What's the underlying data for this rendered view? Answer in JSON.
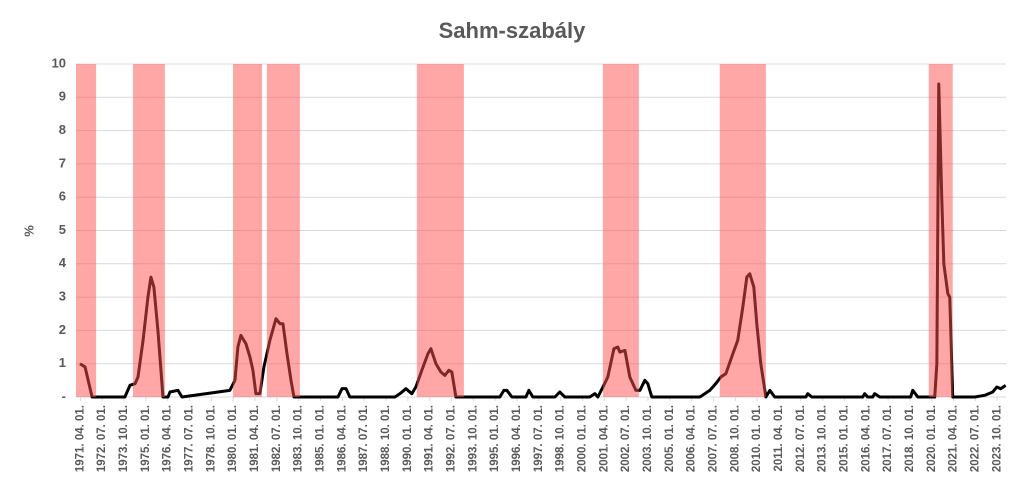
{
  "chart_data": {
    "type": "line",
    "title": "Sahm-szabály",
    "y_label": "%",
    "color": "#000000",
    "band_color": "#ff4d4d",
    "grid": true,
    "xlim": [
      1971.0,
      2024.25
    ],
    "ylim": [
      0,
      10
    ],
    "yticks": [
      {
        "value": 0,
        "label": "-"
      },
      1,
      2,
      3,
      4,
      5,
      6,
      7,
      8,
      9,
      10
    ],
    "xticks": [
      {
        "value": 1971.25,
        "label": "1971. 04. 01."
      },
      {
        "value": 1972.5,
        "label": "1972. 07. 01."
      },
      {
        "value": 1973.75,
        "label": "1973. 10. 01."
      },
      {
        "value": 1975,
        "label": "1975. 01. 01."
      },
      {
        "value": 1976.25,
        "label": "1976. 04. 01."
      },
      {
        "value": 1977.5,
        "label": "1977. 07. 01."
      },
      {
        "value": 1978.75,
        "label": "1978. 10. 01."
      },
      {
        "value": 1980,
        "label": "1980. 01. 01."
      },
      {
        "value": 1981.25,
        "label": "1981. 04. 01."
      },
      {
        "value": 1982.5,
        "label": "1982. 07. 01."
      },
      {
        "value": 1983.75,
        "label": "1983. 10. 01."
      },
      {
        "value": 1985,
        "label": "1985. 01. 01."
      },
      {
        "value": 1986.25,
        "label": "1986. 04. 01."
      },
      {
        "value": 1987.5,
        "label": "1987. 07. 01."
      },
      {
        "value": 1988.75,
        "label": "1988. 10. 01."
      },
      {
        "value": 1990,
        "label": "1990. 01. 01."
      },
      {
        "value": 1991.25,
        "label": "1991. 04. 01."
      },
      {
        "value": 1992.5,
        "label": "1992. 07. 01."
      },
      {
        "value": 1993.75,
        "label": "1993. 10. 01."
      },
      {
        "value": 1995,
        "label": "1995. 01. 01."
      },
      {
        "value": 1996.25,
        "label": "1996. 04. 01."
      },
      {
        "value": 1997.5,
        "label": "1997. 07. 01."
      },
      {
        "value": 1998.75,
        "label": "1998. 10. 01."
      },
      {
        "value": 2000,
        "label": "2000. 01. 01."
      },
      {
        "value": 2001.25,
        "label": "2001. 04. 01."
      },
      {
        "value": 2002.5,
        "label": "2002. 07. 01."
      },
      {
        "value": 2003.75,
        "label": "2003. 10. 01."
      },
      {
        "value": 2005,
        "label": "2005. 01. 01."
      },
      {
        "value": 2006.25,
        "label": "2006. 04. 01."
      },
      {
        "value": 2007.5,
        "label": "2007. 07. 01."
      },
      {
        "value": 2008.75,
        "label": "2008. 10. 01."
      },
      {
        "value": 2010,
        "label": "2010. 01. 01."
      },
      {
        "value": 2011.25,
        "label": "2011. 04. 01."
      },
      {
        "value": 2012.5,
        "label": "2012. 07. 01."
      },
      {
        "value": 2013.75,
        "label": "2013. 10. 01."
      },
      {
        "value": 2015,
        "label": "2015. 01. 01."
      },
      {
        "value": 2016.25,
        "label": "2016. 04. 01."
      },
      {
        "value": 2017.5,
        "label": "2017. 07. 01."
      },
      {
        "value": 2018.75,
        "label": "2018. 10. 01."
      },
      {
        "value": 2020,
        "label": "2020. 01. 01."
      },
      {
        "value": 2021.25,
        "label": "2021. 04. 01."
      },
      {
        "value": 2022.5,
        "label": "2022. 07. 01."
      },
      {
        "value": 2023.75,
        "label": "2023. 10. 01."
      }
    ],
    "recessions": [
      [
        1971.0,
        1972.15
      ],
      [
        1974.26,
        1976.09
      ],
      [
        1979.99,
        1981.65
      ],
      [
        1981.93,
        1983.82
      ],
      [
        1990.52,
        1993.21
      ],
      [
        2001.17,
        2003.23
      ],
      [
        2007.86,
        2010.5
      ],
      [
        2019.83,
        2021.2
      ]
    ],
    "x": [
      1971.23,
      1971.52,
      1971.92,
      1973.8,
      1974.09,
      1974.38,
      1974.55,
      1974.84,
      1975.12,
      1975.29,
      1975.46,
      1975.69,
      1975.98,
      1976.27,
      1976.38,
      1976.84,
      1977.07,
      1979.81,
      1980.1,
      1980.27,
      1980.44,
      1980.73,
      1980.96,
      1981.13,
      1981.3,
      1981.53,
      1981.76,
      1982.1,
      1982.45,
      1982.68,
      1982.85,
      1983.08,
      1983.31,
      1983.48,
      1986.0,
      1986.23,
      1986.46,
      1986.68,
      1989.26,
      1989.55,
      1989.89,
      1990.23,
      1990.46,
      1990.8,
      1991.15,
      1991.32,
      1991.61,
      1991.89,
      1992.12,
      1992.35,
      1992.52,
      1992.75,
      1995.27,
      1995.5,
      1995.67,
      1995.96,
      1996.76,
      1996.93,
      1997.16,
      1998.42,
      1998.7,
      1998.99,
      2000.42,
      2000.71,
      2000.88,
      2001.17,
      2001.45,
      2001.8,
      2002.02,
      2002.14,
      2002.43,
      2002.71,
      2003.06,
      2003.29,
      2003.57,
      2003.74,
      2003.97,
      2006.72,
      2007.01,
      2007.29,
      2007.63,
      2007.92,
      2008.21,
      2008.61,
      2008.89,
      2009.18,
      2009.41,
      2009.58,
      2009.81,
      2009.98,
      2010.21,
      2010.5,
      2010.73,
      2011.01,
      2012.79,
      2012.9,
      2013.13,
      2016.05,
      2016.16,
      2016.33,
      2016.62,
      2016.73,
      2017.02,
      2018.79,
      2018.91,
      2019.2,
      2020.17,
      2020.29,
      2020.4,
      2020.57,
      2020.69,
      2020.92,
      2021.03,
      2021.2,
      2022.46,
      2023.03,
      2023.49,
      2023.72,
      2023.95,
      2024.23
    ],
    "values": [
      1.0,
      0.9,
      0,
      0,
      0.35,
      0.4,
      0.6,
      1.7,
      3.0,
      3.6,
      3.3,
      2.0,
      0,
      0,
      0.15,
      0.2,
      0,
      0.2,
      0.5,
      1.5,
      1.85,
      1.6,
      1.2,
      0.8,
      0.1,
      0.1,
      0.9,
      1.7,
      2.35,
      2.2,
      2.2,
      1.3,
      0.5,
      0,
      0,
      0.25,
      0.25,
      0,
      0,
      0.1,
      0.25,
      0.1,
      0.3,
      0.8,
      1.3,
      1.45,
      1.0,
      0.75,
      0.65,
      0.8,
      0.75,
      0,
      0,
      0.2,
      0.2,
      0,
      0,
      0.2,
      0,
      0,
      0.15,
      0,
      0,
      0.1,
      0,
      0.3,
      0.6,
      1.45,
      1.5,
      1.35,
      1.4,
      0.6,
      0.2,
      0.2,
      0.5,
      0.4,
      0,
      0,
      0.1,
      0.2,
      0.4,
      0.6,
      0.7,
      1.3,
      1.7,
      2.7,
      3.6,
      3.7,
      3.3,
      2.2,
      1.0,
      0,
      0.2,
      0,
      0,
      0.1,
      0,
      0,
      0.1,
      0,
      0,
      0.1,
      0,
      0,
      0.2,
      0,
      0,
      1.0,
      9.4,
      6.0,
      4.0,
      3.1,
      3.0,
      0,
      0,
      0.05,
      0.15,
      0.3,
      0.25,
      0.35
    ]
  }
}
